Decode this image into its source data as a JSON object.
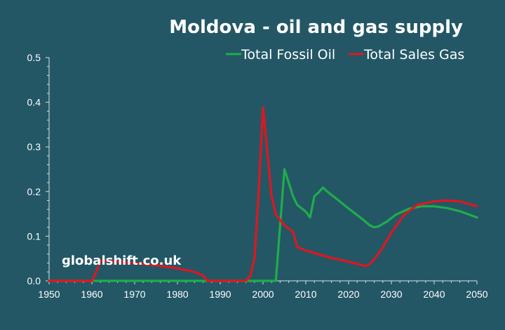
{
  "chart_data": {
    "type": "line",
    "title": "Moldova - oil and gas supply",
    "xlabel": "",
    "ylabel": "",
    "xlim": [
      1950,
      2050
    ],
    "ylim": [
      0,
      0.5
    ],
    "x_ticks": [
      1950,
      1960,
      1970,
      1980,
      1990,
      2000,
      2010,
      2020,
      2030,
      2040,
      2050
    ],
    "y_ticks": [
      "0.0",
      "0.1",
      "0.2",
      "0.3",
      "0.4",
      "0.5"
    ],
    "grid": false,
    "legend_position": "top-right",
    "series": [
      {
        "name": "Total Fossil Oil",
        "color": "#1fad4a",
        "points": [
          [
            1950,
            0
          ],
          [
            2003,
            0
          ],
          [
            2005,
            0.25
          ],
          [
            2006,
            0.22
          ],
          [
            2007,
            0.19
          ],
          [
            2008,
            0.17
          ],
          [
            2010,
            0.155
          ],
          [
            2011,
            0.142
          ],
          [
            2012,
            0.19
          ],
          [
            2013,
            0.198
          ],
          [
            2014,
            0.209
          ],
          [
            2015,
            0.2
          ],
          [
            2017,
            0.185
          ],
          [
            2020,
            0.162
          ],
          [
            2023,
            0.14
          ],
          [
            2025,
            0.124
          ],
          [
            2026,
            0.12
          ],
          [
            2027,
            0.122
          ],
          [
            2029,
            0.133
          ],
          [
            2031,
            0.148
          ],
          [
            2034,
            0.161
          ],
          [
            2037,
            0.167
          ],
          [
            2040,
            0.167
          ],
          [
            2043,
            0.163
          ],
          [
            2046,
            0.156
          ],
          [
            2050,
            0.142
          ]
        ]
      },
      {
        "name": "Total Sales Gas",
        "color": "#e0161f",
        "points": [
          [
            1950,
            0
          ],
          [
            1960,
            0
          ],
          [
            1961,
            0.02
          ],
          [
            1962,
            0.045
          ],
          [
            1963,
            0.045
          ],
          [
            1970,
            0.04
          ],
          [
            1975,
            0.035
          ],
          [
            1980,
            0.028
          ],
          [
            1984,
            0.02
          ],
          [
            1986,
            0.012
          ],
          [
            1987,
            0
          ],
          [
            1996,
            0
          ],
          [
            1997,
            0.01
          ],
          [
            1998,
            0.05
          ],
          [
            1999,
            0.2
          ],
          [
            2000,
            0.388
          ],
          [
            2001,
            0.29
          ],
          [
            2002,
            0.19
          ],
          [
            2003,
            0.148
          ],
          [
            2005,
            0.124
          ],
          [
            2007,
            0.11
          ],
          [
            2008,
            0.076
          ],
          [
            2010,
            0.068
          ],
          [
            2015,
            0.054
          ],
          [
            2020,
            0.043
          ],
          [
            2024,
            0.033
          ],
          [
            2025,
            0.038
          ],
          [
            2026,
            0.048
          ],
          [
            2028,
            0.075
          ],
          [
            2030,
            0.108
          ],
          [
            2033,
            0.148
          ],
          [
            2036,
            0.17
          ],
          [
            2040,
            0.178
          ],
          [
            2043,
            0.18
          ],
          [
            2046,
            0.178
          ],
          [
            2050,
            0.167
          ]
        ]
      }
    ],
    "annotations": [
      "globalshift.co.uk"
    ]
  }
}
